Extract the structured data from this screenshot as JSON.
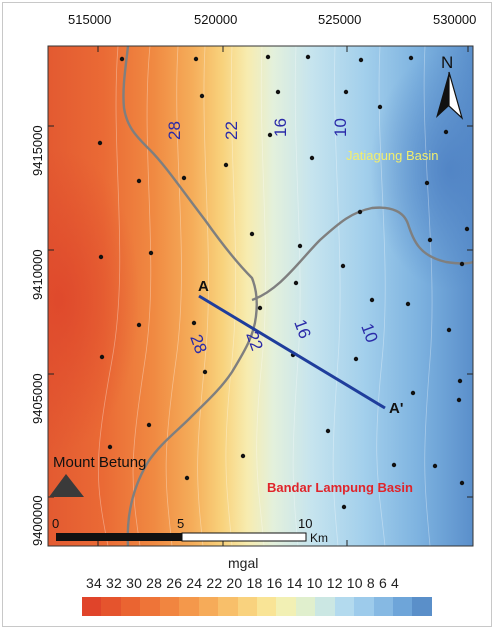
{
  "map": {
    "x_ticks": [
      "515000",
      "520000",
      "525000",
      "530000"
    ],
    "y_ticks": [
      "9415000",
      "9410000",
      "9405000",
      "9400000"
    ],
    "contour_labels": [
      "28",
      "22",
      "16",
      "10",
      "28",
      "22",
      "16",
      "10"
    ],
    "region_labels": {
      "north_east": "Jatiagung Basin",
      "south_east": "Bandar Lampung Basin"
    },
    "mountain_label": "Mount Betung",
    "profile": {
      "start": "A",
      "end": "A'"
    },
    "north_arrow": "N",
    "scalebar": {
      "ticks": [
        "0",
        "5",
        "10"
      ],
      "unit": "Km"
    }
  },
  "legend": {
    "title": "mgal",
    "values_text": "34 32 30 28 26 24 22 20 18 16 14 10 12 10 8 6 4",
    "colors": [
      "#e0442a",
      "#e5542d",
      "#ea6431",
      "#ee7438",
      "#f18540",
      "#f4984b",
      "#f6ab59",
      "#f8bf6a",
      "#f9d27e",
      "#f9e496",
      "#f2f0b4",
      "#e0efcd",
      "#cbe7e3",
      "#b3daee",
      "#9dcbeb",
      "#86b9e3",
      "#6ea5d9",
      "#5a8fc9"
    ]
  },
  "colors": {
    "profile_line": "#1f3d9c",
    "contour_text": "#2a2aa8",
    "region_north": "#f2ee6c",
    "region_south": "#e0242a",
    "boundary": "#7a7a7a"
  }
}
